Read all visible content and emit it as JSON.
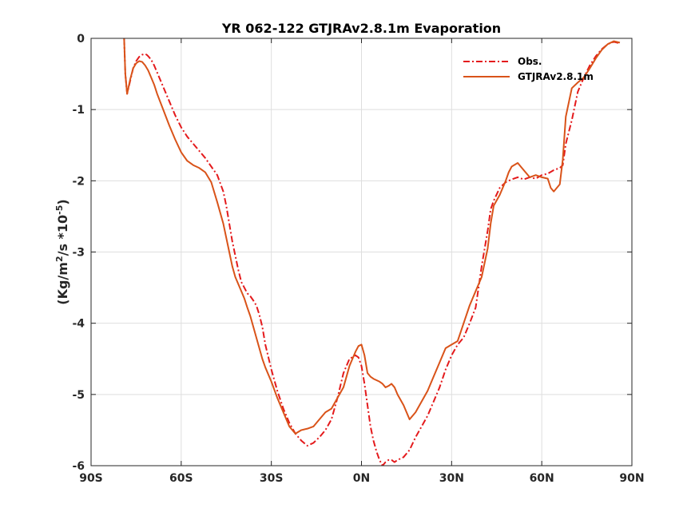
{
  "chart_data": {
    "type": "line",
    "title": "YR 062-122 GTJRAv2.8.1m Evaporation",
    "xlabel": "",
    "ylabel": {
      "prefix": "(Kg/m",
      "sup1": "2",
      "mid": "/s *10",
      "sup2": "-5",
      "suffix": ")"
    },
    "xlim": [
      -90,
      90
    ],
    "ylim": [
      -6,
      0
    ],
    "xticks": [
      -90,
      -60,
      -30,
      0,
      30,
      60,
      90
    ],
    "xtick_labels": [
      "90S",
      "60S",
      "30S",
      "0N",
      "30N",
      "60N",
      "90N"
    ],
    "yticks": [
      0,
      -1,
      -2,
      -3,
      -4,
      -5,
      -6
    ],
    "ytick_labels": [
      "0",
      "-1",
      "-2",
      "-3",
      "-4",
      "-5",
      "-6"
    ],
    "grid": true,
    "legend_position": "top-right",
    "series": [
      {
        "name": "Obs.",
        "color": "#e41a1c",
        "style": "dash-dot",
        "x": [
          -79,
          -78.6,
          -78,
          -77,
          -76,
          -75,
          -74,
          -73,
          -72,
          -71.5,
          -71,
          -70,
          -69,
          -68,
          -66,
          -64,
          -62,
          -60,
          -58,
          -56,
          -54,
          -52,
          -50,
          -48,
          -46,
          -45,
          -44,
          -43,
          -42,
          -41,
          -40,
          -39,
          -38,
          -37,
          -36,
          -35,
          -34,
          -33,
          -32,
          -30,
          -28,
          -26,
          -24,
          -22,
          -20,
          -18,
          -16,
          -14,
          -12,
          -10,
          -8,
          -6,
          -4,
          -2,
          -1,
          0,
          1,
          2,
          3,
          4,
          5,
          6,
          7,
          8,
          9,
          10,
          11,
          12,
          14,
          16,
          18,
          20,
          22,
          24,
          26,
          28,
          30,
          32,
          34,
          36,
          38,
          40,
          42,
          43,
          44,
          46,
          48,
          50,
          52,
          54,
          56,
          58,
          60,
          62,
          64,
          66,
          67,
          68,
          70,
          72,
          74,
          76,
          78,
          80,
          82,
          84,
          86
        ],
        "y": [
          0,
          -0.5,
          -0.78,
          -0.6,
          -0.42,
          -0.32,
          -0.26,
          -0.23,
          -0.22,
          -0.23,
          -0.25,
          -0.3,
          -0.38,
          -0.48,
          -0.68,
          -0.88,
          -1.08,
          -1.25,
          -1.38,
          -1.48,
          -1.58,
          -1.68,
          -1.8,
          -1.92,
          -2.15,
          -2.35,
          -2.6,
          -2.85,
          -3.05,
          -3.25,
          -3.42,
          -3.5,
          -3.58,
          -3.62,
          -3.68,
          -3.75,
          -3.88,
          -4.05,
          -4.3,
          -4.65,
          -4.95,
          -5.2,
          -5.4,
          -5.55,
          -5.65,
          -5.72,
          -5.68,
          -5.6,
          -5.5,
          -5.35,
          -5.05,
          -4.7,
          -4.5,
          -4.45,
          -4.48,
          -4.6,
          -4.85,
          -5.15,
          -5.45,
          -5.65,
          -5.8,
          -5.92,
          -6.0,
          -5.95,
          -5.92,
          -5.92,
          -5.95,
          -5.92,
          -5.88,
          -5.78,
          -5.6,
          -5.45,
          -5.3,
          -5.1,
          -4.9,
          -4.65,
          -4.45,
          -4.3,
          -4.2,
          -4.0,
          -3.78,
          -3.2,
          -2.7,
          -2.4,
          -2.28,
          -2.1,
          -2.02,
          -1.98,
          -1.95,
          -1.98,
          -1.95,
          -1.97,
          -1.92,
          -1.9,
          -1.85,
          -1.82,
          -1.78,
          -1.48,
          -1.15,
          -0.75,
          -0.55,
          -0.38,
          -0.25,
          -0.15,
          -0.08,
          -0.05,
          -0.07
        ]
      },
      {
        "name": "GTJRAv2.8.1m",
        "color": "#d95319",
        "style": "solid",
        "x": [
          -79,
          -78.6,
          -78,
          -77,
          -76,
          -75,
          -74,
          -73,
          -72,
          -71,
          -70,
          -69,
          -68,
          -66,
          -64,
          -62,
          -60,
          -58,
          -56,
          -54,
          -52,
          -50,
          -48,
          -46,
          -45,
          -44,
          -43,
          -42,
          -41,
          -40,
          -39,
          -38,
          -37,
          -36,
          -35,
          -34,
          -33,
          -32,
          -30,
          -28,
          -26,
          -24,
          -22,
          -20,
          -18,
          -16,
          -14,
          -12,
          -10,
          -8,
          -6,
          -4,
          -2,
          -1,
          0,
          1,
          2,
          3,
          4,
          5,
          6,
          7,
          8,
          9,
          10,
          11,
          12,
          14,
          16,
          18,
          20,
          22,
          24,
          26,
          28,
          30,
          32,
          34,
          36,
          38,
          40,
          42,
          43,
          44,
          46,
          48,
          49,
          50,
          52,
          54,
          56,
          58,
          60,
          62,
          63,
          64,
          65,
          66,
          67,
          68,
          70,
          72,
          74,
          76,
          78,
          80,
          82,
          84,
          86
        ],
        "y": [
          0,
          -0.5,
          -0.78,
          -0.58,
          -0.42,
          -0.35,
          -0.32,
          -0.33,
          -0.38,
          -0.45,
          -0.55,
          -0.65,
          -0.78,
          -1.0,
          -1.22,
          -1.42,
          -1.6,
          -1.72,
          -1.78,
          -1.82,
          -1.88,
          -2.02,
          -2.3,
          -2.6,
          -2.8,
          -3.0,
          -3.2,
          -3.35,
          -3.45,
          -3.55,
          -3.65,
          -3.78,
          -3.9,
          -4.05,
          -4.2,
          -4.35,
          -4.5,
          -4.62,
          -4.82,
          -5.05,
          -5.25,
          -5.45,
          -5.55,
          -5.5,
          -5.48,
          -5.45,
          -5.35,
          -5.25,
          -5.2,
          -5.05,
          -4.9,
          -4.6,
          -4.4,
          -4.32,
          -4.3,
          -4.45,
          -4.7,
          -4.75,
          -4.78,
          -4.8,
          -4.82,
          -4.85,
          -4.9,
          -4.88,
          -4.85,
          -4.9,
          -5.0,
          -5.15,
          -5.35,
          -5.25,
          -5.1,
          -4.95,
          -4.75,
          -4.55,
          -4.35,
          -4.3,
          -4.25,
          -4.0,
          -3.75,
          -3.55,
          -3.35,
          -2.95,
          -2.6,
          -2.35,
          -2.2,
          -2.0,
          -1.88,
          -1.8,
          -1.75,
          -1.85,
          -1.95,
          -1.92,
          -1.95,
          -1.97,
          -2.1,
          -2.15,
          -2.1,
          -2.05,
          -1.7,
          -1.1,
          -0.7,
          -0.62,
          -0.55,
          -0.42,
          -0.28,
          -0.16,
          -0.08,
          -0.04,
          -0.06
        ]
      }
    ]
  }
}
